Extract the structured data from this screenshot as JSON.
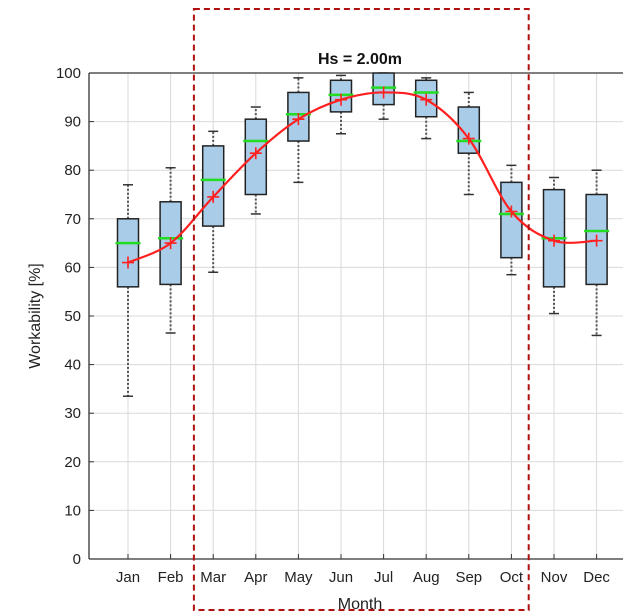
{
  "chart_data": {
    "type": "box",
    "title": "Hs = 2.00m",
    "xlabel": "Month",
    "ylabel": "Workability [%]",
    "ylim": [
      0,
      100
    ],
    "yticks": [
      0,
      10,
      20,
      30,
      40,
      50,
      60,
      70,
      80,
      90,
      100
    ],
    "grid": true,
    "categories": [
      "Jan",
      "Feb",
      "Mar",
      "Apr",
      "May",
      "Jun",
      "Jul",
      "Aug",
      "Sep",
      "Oct",
      "Nov",
      "Dec"
    ],
    "boxes": [
      {
        "whisker_low": 33.5,
        "q1": 56,
        "median": 65,
        "q3": 70,
        "whisker_high": 77
      },
      {
        "whisker_low": 46.5,
        "q1": 56.5,
        "median": 66,
        "q3": 73.5,
        "whisker_high": 80.5
      },
      {
        "whisker_low": 59,
        "q1": 68.5,
        "median": 78,
        "q3": 85,
        "whisker_high": 88
      },
      {
        "whisker_low": 71,
        "q1": 75,
        "median": 86,
        "q3": 90.5,
        "whisker_high": 93
      },
      {
        "whisker_low": 77.5,
        "q1": 86,
        "median": 91.5,
        "q3": 96,
        "whisker_high": 99
      },
      {
        "whisker_low": 87.5,
        "q1": 92,
        "median": 95.5,
        "q3": 98.5,
        "whisker_high": 99.5
      },
      {
        "whisker_low": 90.5,
        "q1": 93.5,
        "median": 97,
        "q3": 100,
        "whisker_high": 100
      },
      {
        "whisker_low": 86.5,
        "q1": 91,
        "median": 96,
        "q3": 98.5,
        "whisker_high": 99
      },
      {
        "whisker_low": 75,
        "q1": 83.5,
        "median": 86,
        "q3": 93,
        "whisker_high": 96
      },
      {
        "whisker_low": 58.5,
        "q1": 62,
        "median": 71,
        "q3": 77.5,
        "whisker_high": 81
      },
      {
        "whisker_low": 50.5,
        "q1": 56,
        "median": 66,
        "q3": 76,
        "whisker_high": 78.5
      },
      {
        "whisker_low": 46,
        "q1": 56.5,
        "median": 67.5,
        "q3": 75,
        "whisker_high": 80
      }
    ],
    "mean_series": {
      "values": [
        61,
        65,
        74.5,
        83.5,
        90.5,
        94.5,
        96,
        94.5,
        86.5,
        71.5,
        65.5,
        65.5
      ],
      "color": "#ff2020"
    },
    "colors": {
      "box_fill": "#a9cce9",
      "box_edge": "#222222",
      "median": "#22dd22",
      "mean_line": "#ff2020",
      "whisker": "#555555",
      "grid": "#d9d9d9",
      "highlight_box": "#b01010"
    },
    "highlight_range": [
      "Mar",
      "Oct"
    ]
  }
}
